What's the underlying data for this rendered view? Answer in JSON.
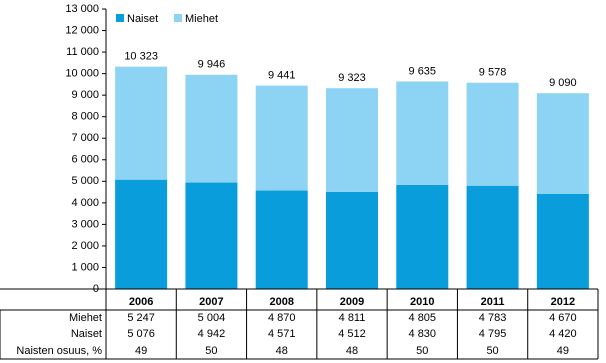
{
  "chart_data": {
    "type": "stacked_bar",
    "categories": [
      "2006",
      "2007",
      "2008",
      "2009",
      "2010",
      "2011",
      "2012"
    ],
    "series": [
      {
        "name": "Naiset",
        "color": "#0a9ddc",
        "values": [
          5076,
          4942,
          4571,
          4512,
          4830,
          4795,
          4420
        ],
        "value_labels": [
          "5 076",
          "4 942",
          "4 571",
          "4 512",
          "4 830",
          "4 795",
          "4 420"
        ]
      },
      {
        "name": "Miehet",
        "color": "#8dd3f4",
        "values": [
          5247,
          5004,
          4870,
          4811,
          4805,
          4783,
          4670
        ],
        "value_labels": [
          "5 247",
          "5 004",
          "4 870",
          "4 811",
          "4 805",
          "4 783",
          "4 670"
        ]
      }
    ],
    "totals": [
      10323,
      9946,
      9441,
      9323,
      9635,
      9578,
      9090
    ],
    "total_labels": [
      "10 323",
      "9 946",
      "9 441",
      "9 323",
      "9 635",
      "9 578",
      "9 090"
    ],
    "share": {
      "name": "Naisten osuus, %",
      "values": [
        49,
        50,
        48,
        48,
        50,
        50,
        49
      ]
    },
    "ylim": [
      0,
      13000
    ],
    "yticks": [
      0,
      {
        "value": 1000,
        "label": "1 000"
      },
      {
        "value": 2000,
        "label": "2 000"
      },
      {
        "value": 3000,
        "label": "3 000"
      },
      {
        "value": 4000,
        "label": "4 000"
      },
      {
        "value": 5000,
        "label": "5 000"
      },
      {
        "value": 6000,
        "label": "6 000"
      },
      {
        "value": 7000,
        "label": "7 000"
      },
      {
        "value": 8000,
        "label": "8 000"
      },
      {
        "value": 9000,
        "label": "9 000"
      },
      {
        "value": 10000,
        "label": "10 000"
      },
      {
        "value": 11000,
        "label": "11 000"
      },
      {
        "value": 12000,
        "label": "12 000"
      },
      {
        "value": 13000,
        "label": "13 000"
      }
    ],
    "grid": false,
    "legend": "top-left"
  }
}
